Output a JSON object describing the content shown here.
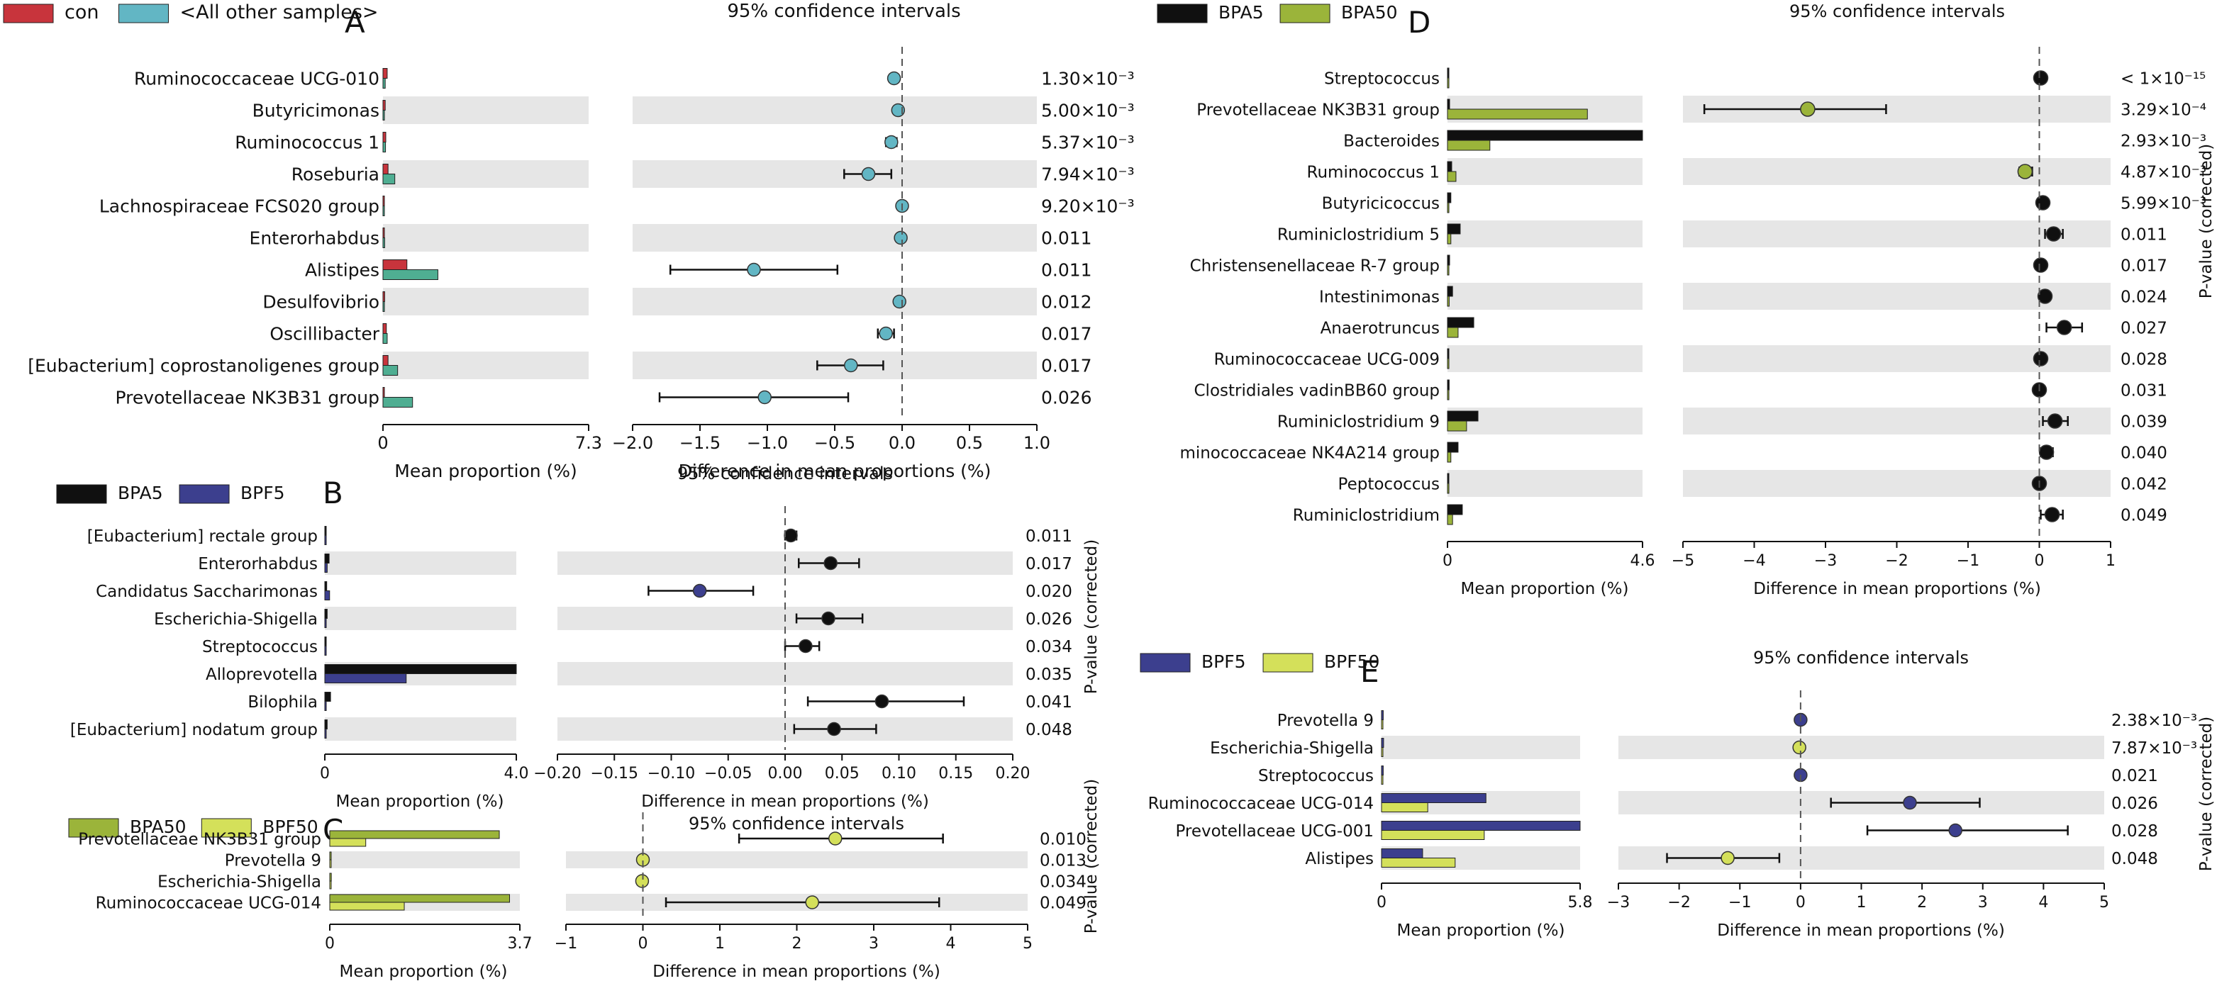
{
  "axis_labels": {
    "mean_proportion": "Mean proportion (%)",
    "difference": "Difference in mean proportions (%)",
    "ci_title": "95% confidence intervals",
    "pvalue_label": "P-value (corrected)"
  },
  "colors": {
    "con": "#c8343c",
    "all_other": "#62b6c4",
    "all_other_bar": "#4fae92",
    "bpa5": "#101010",
    "bpf5": "#3c3f8e",
    "bpa50": "#9bb43a",
    "bpf50": "#d4e05a",
    "stripe": "#e6e6e6"
  },
  "chart_data": [
    {
      "type": "extended_error_bar",
      "panel_letter": "A",
      "legend": [
        {
          "label": "con",
          "color_key": "con"
        },
        {
          "label": "<All other samples>",
          "color_key": "all_other"
        }
      ],
      "groups": [
        "con",
        "<All other samples>"
      ],
      "features": [
        "Ruminococcaceae UCG-010",
        "Butyricimonas",
        "Ruminococcus 1",
        "Roseburia",
        "Lachnospiraceae FCS020 group",
        "Enterorhabdus",
        "Alistipes",
        "Desulfovibrio",
        "Oscillibacter",
        "[Eubacterium] coprostanoligenes group",
        "Prevotellaceae NK3B31 group"
      ],
      "mean_proportions": [
        [
          0.15,
          0.08
        ],
        [
          0.08,
          0.05
        ],
        [
          0.1,
          0.09
        ],
        [
          0.18,
          0.42
        ],
        [
          0.03,
          0.04
        ],
        [
          0.05,
          0.06
        ],
        [
          0.85,
          1.95
        ],
        [
          0.06,
          0.05
        ],
        [
          0.12,
          0.15
        ],
        [
          0.18,
          0.52
        ],
        [
          0.05,
          1.05
        ]
      ],
      "differences": [
        -0.06,
        -0.03,
        -0.08,
        -0.25,
        0.0,
        -0.01,
        -1.1,
        -0.02,
        -0.12,
        -0.38,
        -1.02
      ],
      "ci_low": [
        -0.09,
        -0.06,
        -0.12,
        -0.43,
        -0.02,
        -0.03,
        -1.72,
        -0.05,
        -0.18,
        -0.63,
        -1.8
      ],
      "ci_high": [
        -0.03,
        0.0,
        -0.04,
        -0.08,
        0.02,
        0.01,
        -0.48,
        0.01,
        -0.06,
        -0.14,
        -0.4
      ],
      "pvalues": [
        "1.30×10⁻³",
        "5.00×10⁻³",
        "5.37×10⁻³",
        "7.94×10⁻³",
        "9.20×10⁻³",
        "0.011",
        "0.011",
        "0.012",
        "0.017",
        "0.017",
        "0.026"
      ],
      "dot_colors": [
        "all_other",
        "all_other",
        "all_other",
        "all_other",
        "all_other",
        "all_other",
        "all_other",
        "all_other",
        "all_other",
        "all_other",
        "all_other"
      ],
      "bar_color_keys": [
        "con",
        "all_other_bar"
      ],
      "mean_axis": {
        "max": 7.3,
        "ticks": [
          "0",
          "7.3"
        ]
      },
      "diff_axis": {
        "min": -2.0,
        "max": 1.0,
        "ticks": [
          -2.0,
          -1.5,
          -1.0,
          -0.5,
          0.0,
          0.5,
          1.0
        ],
        "tick_labels": [
          "−2.0",
          "−1.5",
          "−1.0",
          "−0.5",
          "0.0",
          "0.5",
          "1.0"
        ]
      },
      "show_pvalue_label": false
    },
    {
      "type": "extended_error_bar",
      "panel_letter": "B",
      "legend": [
        {
          "label": "BPA5",
          "color_key": "bpa5"
        },
        {
          "label": "BPF5",
          "color_key": "bpf5"
        }
      ],
      "groups": [
        "BPA5",
        "BPF5"
      ],
      "features": [
        "[Eubacterium] rectale group",
        "Enterorhabdus",
        "Candidatus Saccharimonas",
        "Escherichia-Shigella",
        "Streptococcus",
        "Alloprevotella",
        "Bilophila",
        "[Eubacterium] nodatum group"
      ],
      "mean_proportions": [
        [
          0.01,
          0.0
        ],
        [
          0.09,
          0.05
        ],
        [
          0.04,
          0.1
        ],
        [
          0.05,
          0.02
        ],
        [
          0.03,
          0.01
        ],
        [
          4.0,
          1.7
        ],
        [
          0.12,
          0.03
        ],
        [
          0.05,
          0.01
        ]
      ],
      "differences": [
        0.005,
        0.04,
        -0.075,
        0.038,
        0.018,
        null,
        0.085,
        0.043
      ],
      "ci_low": [
        0.0,
        0.012,
        -0.12,
        0.01,
        0.0,
        null,
        0.02,
        0.008
      ],
      "ci_high": [
        0.01,
        0.065,
        -0.028,
        0.068,
        0.03,
        null,
        0.157,
        0.08
      ],
      "pvalues": [
        "0.011",
        "0.017",
        "0.020",
        "0.026",
        "0.034",
        "0.035",
        "0.041",
        "0.048"
      ],
      "dot_colors": [
        "bpa5",
        "bpa5",
        "bpf5",
        "bpa5",
        "bpa5",
        "bpa5",
        "bpa5",
        "bpa5"
      ],
      "bar_color_keys": [
        "bpa5",
        "bpf5"
      ],
      "mean_axis": {
        "max": 4.0,
        "ticks": [
          "0",
          "4.0"
        ]
      },
      "diff_axis": {
        "min": -0.2,
        "max": 0.2,
        "ticks": [
          -0.2,
          -0.15,
          -0.1,
          -0.05,
          0.0,
          0.05,
          0.1,
          0.15,
          0.2
        ],
        "tick_labels": [
          "−0.20",
          "−0.15",
          "−0.10",
          "−0.05",
          "0.00",
          "0.05",
          "0.10",
          "0.15",
          "0.20"
        ]
      },
      "show_pvalue_label": true
    },
    {
      "type": "extended_error_bar",
      "panel_letter": "C",
      "legend": [
        {
          "label": "BPA50",
          "color_key": "bpa50"
        },
        {
          "label": "BPF50",
          "color_key": "bpf50"
        }
      ],
      "groups": [
        "BPA50",
        "BPF50"
      ],
      "features": [
        "Prevotellaceae NK3B31 group",
        "Prevotella 9",
        "Escherichia-Shigella",
        "Ruminococcaceae UCG-014"
      ],
      "mean_proportions": [
        [
          3.3,
          0.7
        ],
        [
          0.02,
          0.0
        ],
        [
          0.03,
          0.01
        ],
        [
          3.5,
          1.45
        ]
      ],
      "differences": [
        2.5,
        0.0,
        -0.01,
        2.2
      ],
      "ci_low": [
        1.25,
        -0.02,
        -0.03,
        0.3
      ],
      "ci_high": [
        3.9,
        0.02,
        0.01,
        3.85
      ],
      "pvalues": [
        "0.010",
        "0.013",
        "0.034",
        "0.049"
      ],
      "dot_colors": [
        "bpf50",
        "bpf50",
        "bpf50",
        "bpf50"
      ],
      "bar_color_keys": [
        "bpa50",
        "bpf50"
      ],
      "mean_axis": {
        "max": 3.7,
        "ticks": [
          "0",
          "3.7"
        ]
      },
      "diff_axis": {
        "min": -1,
        "max": 5,
        "ticks": [
          -1,
          0,
          1,
          2,
          3,
          4,
          5
        ],
        "tick_labels": [
          "−1",
          "0",
          "1",
          "2",
          "3",
          "4",
          "5"
        ]
      },
      "show_pvalue_label": true
    },
    {
      "type": "extended_error_bar",
      "panel_letter": "D",
      "legend": [
        {
          "label": "BPA5",
          "color_key": "bpa5"
        },
        {
          "label": "BPA50",
          "color_key": "bpa50"
        }
      ],
      "groups": [
        "BPA5",
        "BPA50"
      ],
      "features": [
        "Streptococcus",
        "Prevotellaceae NK3B31 group",
        "Bacteroides",
        "Ruminococcus 1",
        "Butyricicoccus",
        "Ruminiclostridium 5",
        "Christensenellaceae R-7 group",
        "Intestinimonas",
        "Anaerotruncus",
        "Ruminococcaceae UCG-009",
        "Clostridiales vadinBB60 group",
        "Ruminiclostridium 9",
        "minococcaceae NK4A214 group",
        "Peptococcus",
        "Ruminiclostridium"
      ],
      "mean_proportions": [
        [
          0.02,
          0.0
        ],
        [
          0.05,
          3.3
        ],
        [
          4.6,
          1.0
        ],
        [
          0.1,
          0.2
        ],
        [
          0.08,
          0.02
        ],
        [
          0.3,
          0.08
        ],
        [
          0.05,
          0.02
        ],
        [
          0.12,
          0.04
        ],
        [
          0.62,
          0.25
        ],
        [
          0.03,
          0.01
        ],
        [
          0.04,
          0.01
        ],
        [
          0.72,
          0.45
        ],
        [
          0.25,
          0.08
        ],
        [
          0.02,
          0.0
        ],
        [
          0.35,
          0.12
        ]
      ],
      "differences": [
        0.02,
        -3.25,
        null,
        -0.2,
        0.05,
        0.2,
        0.02,
        0.08,
        0.35,
        0.02,
        0.0,
        0.22,
        0.1,
        0.0,
        0.18
      ],
      "ci_low": [
        0.0,
        -4.7,
        null,
        -0.28,
        0.0,
        0.08,
        0.0,
        0.03,
        0.1,
        0.0,
        -0.01,
        0.05,
        0.02,
        -0.01,
        0.02
      ],
      "ci_high": [
        0.04,
        -2.15,
        null,
        -0.1,
        0.1,
        0.33,
        0.04,
        0.13,
        0.6,
        0.04,
        0.01,
        0.4,
        0.19,
        0.01,
        0.33
      ],
      "pvalues": [
        "< 1×10⁻¹⁵",
        "3.29×10⁻⁴",
        "2.93×10⁻³",
        "4.87×10⁻³",
        "5.99×10⁻³",
        "0.011",
        "0.017",
        "0.024",
        "0.027",
        "0.028",
        "0.031",
        "0.039",
        "0.040",
        "0.042",
        "0.049"
      ],
      "dot_colors": [
        "bpa5",
        "bpa50",
        "bpa5",
        "bpa50",
        "bpa5",
        "bpa5",
        "bpa5",
        "bpa5",
        "bpa5",
        "bpa5",
        "bpa5",
        "bpa5",
        "bpa5",
        "bpa5",
        "bpa5"
      ],
      "bar_color_keys": [
        "bpa5",
        "bpa50"
      ],
      "mean_axis": {
        "max": 4.6,
        "ticks": [
          "0",
          "4.6"
        ]
      },
      "diff_axis": {
        "min": -5,
        "max": 1,
        "ticks": [
          -5,
          -4,
          -3,
          -2,
          -1,
          0,
          1
        ],
        "tick_labels": [
          "−5",
          "−4",
          "−3",
          "−2",
          "−1",
          "0",
          "1"
        ]
      },
      "show_pvalue_label": true
    },
    {
      "type": "extended_error_bar",
      "panel_letter": "E",
      "legend": [
        {
          "label": "BPF5",
          "color_key": "bpf5"
        },
        {
          "label": "BPF50",
          "color_key": "bpf50"
        }
      ],
      "groups": [
        "BPF5",
        "BPF50"
      ],
      "features": [
        "Prevotella 9",
        "Escherichia-Shigella",
        "Streptococcus",
        "Ruminococcaceae UCG-014",
        "Prevotellaceae UCG-001",
        "Alistipes"
      ],
      "mean_proportions": [
        [
          0.05,
          0.02
        ],
        [
          0.06,
          0.04
        ],
        [
          0.05,
          0.01
        ],
        [
          3.05,
          1.35
        ],
        [
          5.8,
          3.0
        ],
        [
          1.2,
          2.15
        ]
      ],
      "differences": [
        0.0,
        -0.02,
        0.0,
        1.8,
        2.55,
        -1.2
      ],
      "ci_low": [
        -0.02,
        -0.05,
        -0.02,
        0.5,
        1.1,
        -2.2
      ],
      "ci_high": [
        0.02,
        0.01,
        0.02,
        2.95,
        4.4,
        -0.35
      ],
      "pvalues": [
        "2.38×10⁻³",
        "7.87×10⁻³",
        "0.021",
        "0.026",
        "0.028",
        "0.048"
      ],
      "dot_colors": [
        "bpf5",
        "bpf50",
        "bpf5",
        "bpf5",
        "bpf5",
        "bpf50"
      ],
      "bar_color_keys": [
        "bpf5",
        "bpf50"
      ],
      "mean_axis": {
        "max": 5.8,
        "ticks": [
          "0",
          "5.8"
        ]
      },
      "diff_axis": {
        "min": -3,
        "max": 5,
        "ticks": [
          -3,
          -2,
          -1,
          0,
          1,
          2,
          3,
          4,
          5
        ],
        "tick_labels": [
          "−3",
          "−2",
          "−1",
          "0",
          "1",
          "2",
          "3",
          "4",
          "5"
        ]
      },
      "show_pvalue_label": true
    }
  ]
}
